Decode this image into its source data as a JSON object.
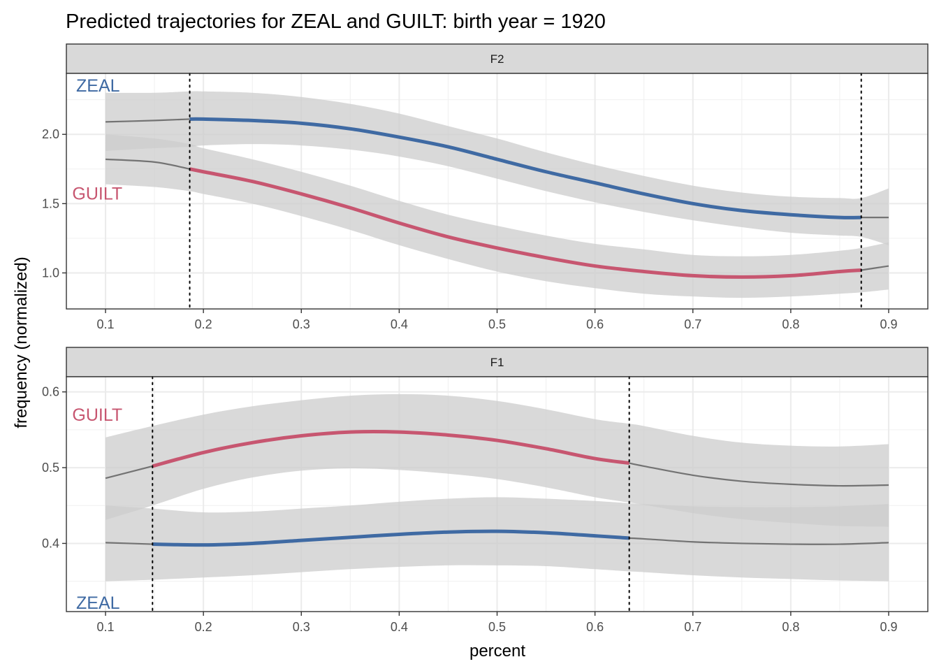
{
  "chart_data": {
    "type": "line",
    "title": "Predicted trajectories for ZEAL and GUILT: birth year = 1920",
    "xlabel": "percent",
    "ylabel": "frequency (normalized)",
    "grid": true,
    "colors": {
      "ZEAL": "#3f6aa3",
      "GUILT": "#c75670",
      "outside": "#737373",
      "band": "#cccccc"
    },
    "x_ticks": [
      "0.1",
      "0.2",
      "0.3",
      "0.4",
      "0.5",
      "0.6",
      "0.7",
      "0.8",
      "0.9"
    ],
    "panels": [
      {
        "strip": "F2",
        "xlim": [
          0.06,
          0.94
        ],
        "ylim": [
          0.74,
          2.44
        ],
        "y_ticks": [
          1.0,
          1.5,
          2.0
        ],
        "y_tick_labels": [
          "1.0",
          "1.5",
          "2.0"
        ],
        "vlines": [
          0.186,
          0.872
        ],
        "label_positions": {
          "ZEAL": "top-left",
          "GUILT": "middle-left"
        },
        "series": [
          {
            "name": "ZEAL",
            "x": [
              0.1,
              0.15,
              0.186,
              0.2,
              0.25,
              0.3,
              0.35,
              0.4,
              0.45,
              0.5,
              0.55,
              0.6,
              0.65,
              0.7,
              0.75,
              0.8,
              0.85,
              0.872,
              0.9
            ],
            "y": [
              2.09,
              2.1,
              2.11,
              2.11,
              2.1,
              2.08,
              2.04,
              1.98,
              1.91,
              1.82,
              1.73,
              1.65,
              1.57,
              1.5,
              1.45,
              1.42,
              1.4,
              1.4,
              1.4
            ],
            "lower": [
              1.88,
              1.9,
              1.91,
              1.92,
              1.93,
              1.92,
              1.89,
              1.84,
              1.77,
              1.68,
              1.59,
              1.51,
              1.44,
              1.38,
              1.33,
              1.29,
              1.27,
              1.26,
              1.2
            ],
            "upper": [
              2.3,
              2.3,
              2.31,
              2.31,
              2.3,
              2.27,
              2.22,
              2.15,
              2.06,
              1.97,
              1.87,
              1.78,
              1.7,
              1.63,
              1.58,
              1.55,
              1.54,
              1.54,
              1.61
            ]
          },
          {
            "name": "GUILT",
            "x": [
              0.1,
              0.15,
              0.186,
              0.2,
              0.25,
              0.3,
              0.35,
              0.4,
              0.45,
              0.5,
              0.55,
              0.6,
              0.65,
              0.7,
              0.75,
              0.8,
              0.85,
              0.872,
              0.9
            ],
            "y": [
              1.82,
              1.8,
              1.75,
              1.73,
              1.66,
              1.57,
              1.47,
              1.36,
              1.26,
              1.18,
              1.11,
              1.05,
              1.01,
              0.98,
              0.97,
              0.98,
              1.01,
              1.02,
              1.05
            ],
            "lower": [
              1.64,
              1.62,
              1.59,
              1.57,
              1.5,
              1.41,
              1.31,
              1.2,
              1.1,
              1.01,
              0.94,
              0.89,
              0.85,
              0.83,
              0.82,
              0.83,
              0.85,
              0.86,
              0.88
            ],
            "upper": [
              2.0,
              1.97,
              1.93,
              1.9,
              1.82,
              1.73,
              1.63,
              1.52,
              1.42,
              1.34,
              1.27,
              1.21,
              1.17,
              1.13,
              1.12,
              1.13,
              1.16,
              1.18,
              1.22
            ]
          }
        ]
      },
      {
        "strip": "F1",
        "xlim": [
          0.06,
          0.94
        ],
        "ylim": [
          0.31,
          0.62
        ],
        "y_ticks": [
          0.4,
          0.5,
          0.6
        ],
        "y_tick_labels": [
          "0.4",
          "0.5",
          "0.6"
        ],
        "vlines": [
          0.148,
          0.635
        ],
        "label_positions": {
          "ZEAL": "bottom-left",
          "GUILT": "upper-left"
        },
        "series": [
          {
            "name": "ZEAL",
            "x": [
              0.1,
              0.148,
              0.2,
              0.25,
              0.3,
              0.35,
              0.4,
              0.45,
              0.5,
              0.55,
              0.6,
              0.635,
              0.65,
              0.7,
              0.75,
              0.8,
              0.85,
              0.9
            ],
            "y": [
              0.401,
              0.399,
              0.398,
              0.4,
              0.404,
              0.408,
              0.412,
              0.415,
              0.416,
              0.414,
              0.41,
              0.407,
              0.406,
              0.402,
              0.4,
              0.399,
              0.399,
              0.401
            ],
            "lower": [
              0.35,
              0.352,
              0.355,
              0.358,
              0.362,
              0.366,
              0.369,
              0.371,
              0.371,
              0.37,
              0.366,
              0.363,
              0.362,
              0.358,
              0.355,
              0.353,
              0.351,
              0.35
            ],
            "upper": [
              0.45,
              0.446,
              0.441,
              0.442,
              0.446,
              0.45,
              0.455,
              0.459,
              0.461,
              0.459,
              0.456,
              0.453,
              0.452,
              0.449,
              0.448,
              0.448,
              0.449,
              0.452
            ]
          },
          {
            "name": "GUILT",
            "x": [
              0.1,
              0.148,
              0.2,
              0.25,
              0.3,
              0.35,
              0.4,
              0.45,
              0.5,
              0.55,
              0.6,
              0.635,
              0.65,
              0.7,
              0.75,
              0.8,
              0.85,
              0.9
            ],
            "y": [
              0.486,
              0.502,
              0.52,
              0.533,
              0.542,
              0.547,
              0.547,
              0.543,
              0.536,
              0.525,
              0.512,
              0.506,
              0.502,
              0.49,
              0.482,
              0.478,
              0.476,
              0.477
            ],
            "lower": [
              0.431,
              0.45,
              0.472,
              0.487,
              0.496,
              0.499,
              0.497,
              0.492,
              0.485,
              0.474,
              0.461,
              0.454,
              0.451,
              0.44,
              0.432,
              0.427,
              0.423,
              0.422
            ],
            "upper": [
              0.54,
              0.555,
              0.57,
              0.581,
              0.589,
              0.595,
              0.597,
              0.595,
              0.588,
              0.577,
              0.564,
              0.558,
              0.555,
              0.542,
              0.533,
              0.529,
              0.528,
              0.531
            ]
          }
        ]
      }
    ]
  }
}
